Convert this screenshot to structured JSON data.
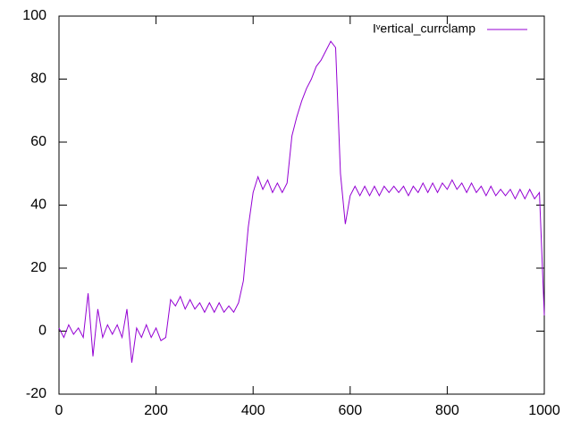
{
  "chart_data": {
    "type": "line",
    "x": [
      0,
      10,
      20,
      30,
      40,
      50,
      60,
      70,
      80,
      90,
      100,
      110,
      120,
      130,
      140,
      150,
      160,
      170,
      180,
      190,
      200,
      210,
      220,
      230,
      240,
      250,
      260,
      270,
      280,
      290,
      300,
      310,
      320,
      330,
      340,
      350,
      360,
      370,
      380,
      390,
      400,
      410,
      420,
      430,
      440,
      450,
      460,
      470,
      480,
      490,
      500,
      510,
      520,
      530,
      540,
      550,
      560,
      570,
      580,
      590,
      600,
      610,
      620,
      630,
      640,
      650,
      660,
      670,
      680,
      690,
      700,
      710,
      720,
      730,
      740,
      750,
      760,
      770,
      780,
      790,
      800,
      810,
      820,
      830,
      840,
      850,
      860,
      870,
      880,
      890,
      900,
      910,
      920,
      930,
      940,
      950,
      960,
      970,
      980,
      990,
      1000
    ],
    "series": [
      {
        "name": "Iᵛertical_currclamp",
        "color": "#9400d3",
        "values": [
          1,
          -2,
          2,
          -1,
          1,
          -2,
          12,
          -8,
          7,
          -2,
          2,
          -1,
          2,
          -2,
          7,
          -10,
          1,
          -2,
          2,
          -2,
          1,
          -3,
          -2,
          10,
          8,
          11,
          7,
          10,
          7,
          9,
          6,
          9,
          6,
          9,
          6,
          8,
          6,
          9,
          16,
          33,
          44,
          49,
          45,
          48,
          44,
          47,
          44,
          47,
          62,
          68,
          73,
          77,
          80,
          84,
          86,
          89,
          92,
          90,
          50,
          34,
          43,
          46,
          43,
          46,
          43,
          46,
          43,
          46,
          44,
          46,
          44,
          46,
          43,
          46,
          44,
          47,
          44,
          47,
          44,
          47,
          45,
          48,
          45,
          47,
          44,
          47,
          44,
          46,
          43,
          46,
          43,
          45,
          43,
          45,
          42,
          45,
          42,
          45,
          42,
          44,
          5
        ]
      }
    ],
    "xlim": [
      0,
      1000
    ],
    "xticks": [
      0,
      200,
      400,
      600,
      800,
      1000
    ],
    "ylim": [
      -20,
      100
    ],
    "yticks": [
      -20,
      0,
      20,
      40,
      60,
      80,
      100
    ],
    "legend": "top-right"
  }
}
